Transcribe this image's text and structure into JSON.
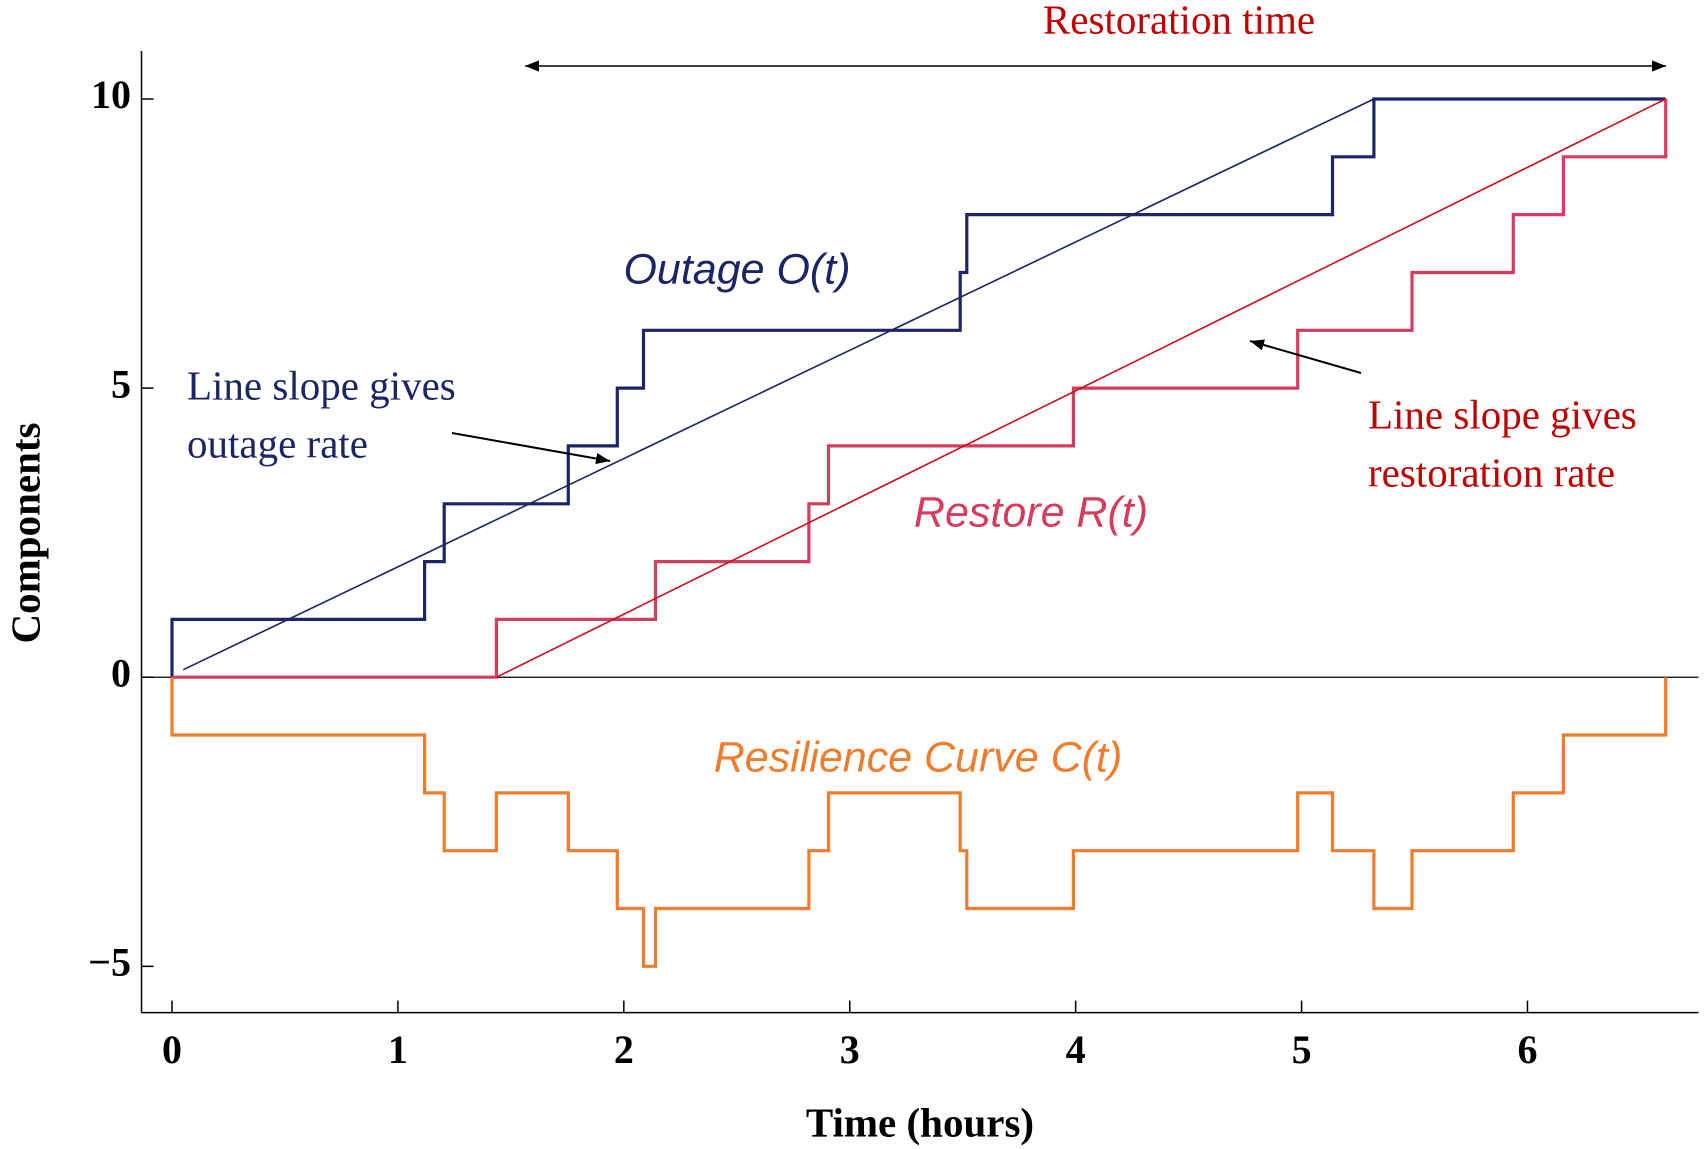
{
  "chart_data": {
    "type": "line",
    "xlabel": "Time (hours)",
    "ylabel": "Components",
    "xlim": [
      -0.135,
      6.757
    ],
    "ylim": [
      -5.8,
      10.83
    ],
    "xticks": [
      0,
      1,
      2,
      3,
      4,
      5,
      6
    ],
    "yticks": [
      {
        "value": -5,
        "label": "−5"
      },
      0,
      5,
      10
    ],
    "series": [
      {
        "name": "Outage O(t)",
        "color": "#1c2566",
        "x": [
          0,
          0,
          1.118,
          1.118,
          1.205,
          1.205,
          1.754,
          1.754,
          1.971,
          1.971,
          2.087,
          2.087,
          3.489,
          3.489,
          3.518,
          3.518,
          5.137,
          5.137,
          5.32,
          5.32,
          6.612
        ],
        "values": [
          0,
          1,
          1,
          2,
          2,
          3,
          3,
          4,
          4,
          5,
          5,
          6,
          6,
          7,
          7,
          8,
          8,
          9,
          9,
          10,
          10
        ]
      },
      {
        "name": "Restore R(t)",
        "color": "#d63c5e",
        "x": [
          0,
          1.436,
          1.436,
          2.14,
          2.14,
          2.819,
          2.819,
          2.906,
          2.906,
          3.99,
          3.99,
          4.983,
          4.983,
          5.489,
          5.489,
          5.937,
          5.937,
          6.159,
          6.159,
          6.612,
          6.612
        ],
        "values": [
          0,
          0,
          1,
          1,
          2,
          2,
          3,
          3,
          4,
          4,
          5,
          5,
          6,
          6,
          7,
          7,
          8,
          8,
          9,
          9,
          10
        ]
      },
      {
        "name": "Resilience Curve C(t)",
        "color": "#f07d2c",
        "x": [
          0,
          0,
          1.118,
          1.118,
          1.205,
          1.205,
          1.436,
          1.436,
          1.754,
          1.754,
          1.971,
          1.971,
          2.087,
          2.087,
          2.14,
          2.14,
          2.819,
          2.819,
          2.906,
          2.906,
          3.489,
          3.489,
          3.518,
          3.518,
          3.99,
          3.99,
          4.983,
          4.983,
          5.137,
          5.137,
          5.32,
          5.32,
          5.489,
          5.489,
          5.937,
          5.937,
          6.159,
          6.159,
          6.612,
          6.612
        ],
        "values": [
          0,
          -1,
          -1,
          -2,
          -2,
          -3,
          -3,
          -2,
          -2,
          -3,
          -3,
          -4,
          -4,
          -5,
          -5,
          -4,
          -4,
          -3,
          -3,
          -2,
          -2,
          -3,
          -3,
          -4,
          -4,
          -3,
          -3,
          -2,
          -2,
          -3,
          -3,
          -4,
          -4,
          -3,
          -3,
          -2,
          -2,
          -1,
          -1,
          0
        ]
      },
      {
        "color": "#1c2566",
        "x": [
          0.05,
          5.32
        ],
        "values": [
          0.13,
          10
        ]
      },
      {
        "color": "#c8101e",
        "x": [
          1.436,
          6.612
        ],
        "values": [
          0,
          10
        ]
      }
    ],
    "annotations": [
      {
        "text": "Restoration time",
        "color": "#c00000"
      },
      {
        "lines": [
          "Line slope gives",
          "outage rate"
        ],
        "color": "#1c2566"
      },
      {
        "lines": [
          "Line slope gives",
          "restoration rate"
        ],
        "color": "#c00000"
      }
    ]
  }
}
